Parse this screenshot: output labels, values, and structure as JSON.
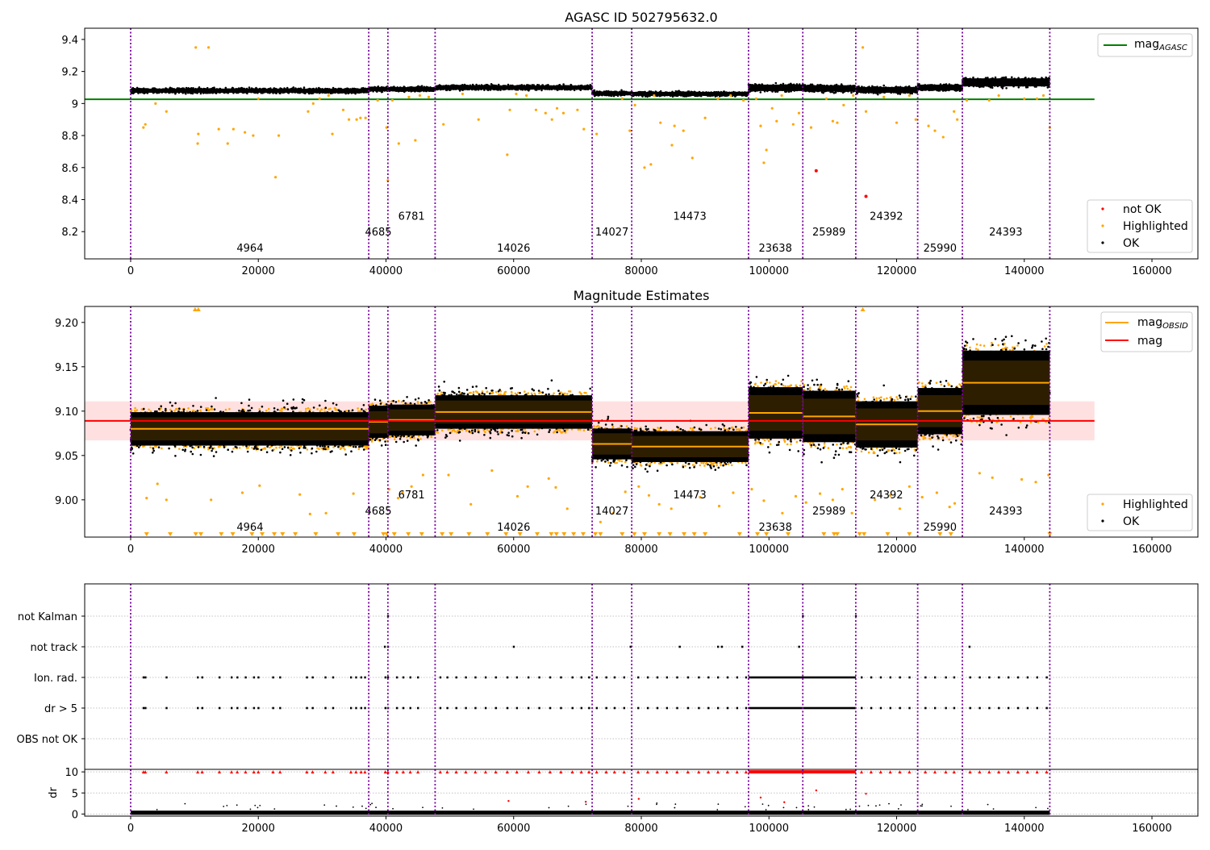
{
  "chart_data": [
    {
      "type": "scatter",
      "title": "AGASC ID 502795632.0",
      "xlim": [
        -7200,
        167200
      ],
      "ylim": [
        8.03,
        9.47
      ],
      "x_ticks": [
        0,
        20000,
        40000,
        60000,
        80000,
        100000,
        120000,
        140000,
        160000
      ],
      "y_ticks": [
        8.2,
        8.4,
        8.6,
        8.8,
        9.0,
        9.2,
        9.4
      ],
      "obs_boundaries": [
        0,
        37300,
        40300,
        47700,
        72300,
        78500,
        96800,
        105300,
        113600,
        123300,
        130300,
        144000
      ],
      "obs_labels": [
        {
          "text": "4964",
          "x": 18700,
          "y": 8.1
        },
        {
          "text": "4685",
          "x": 38800,
          "y": 8.2
        },
        {
          "text": "6781",
          "x": 44000,
          "y": 8.3
        },
        {
          "text": "14026",
          "x": 60000,
          "y": 8.1
        },
        {
          "text": "14027",
          "x": 75400,
          "y": 8.2
        },
        {
          "text": "14473",
          "x": 87600,
          "y": 8.3
        },
        {
          "text": "23638",
          "x": 101000,
          "y": 8.1
        },
        {
          "text": "25989",
          "x": 109400,
          "y": 8.2
        },
        {
          "text": "24392",
          "x": 118400,
          "y": 8.3
        },
        {
          "text": "25990",
          "x": 126800,
          "y": 8.1
        },
        {
          "text": "24393",
          "x": 137100,
          "y": 8.2
        }
      ],
      "reference_line": {
        "name": "mag_AGASC",
        "value": 9.026,
        "x_range": [
          -7200,
          151000
        ],
        "color": "#008000"
      },
      "ok_bands": [
        {
          "x0": 0,
          "x1": 37300,
          "center": 9.08,
          "half_width": 0.013
        },
        {
          "x0": 37300,
          "x1": 40300,
          "center": 9.09,
          "half_width": 0.013
        },
        {
          "x0": 40300,
          "x1": 47700,
          "center": 9.09,
          "half_width": 0.012
        },
        {
          "x0": 47700,
          "x1": 72300,
          "center": 9.1,
          "half_width": 0.013
        },
        {
          "x0": 72300,
          "x1": 78500,
          "center": 9.063,
          "half_width": 0.012
        },
        {
          "x0": 78500,
          "x1": 96800,
          "center": 9.06,
          "half_width": 0.012
        },
        {
          "x0": 96800,
          "x1": 105300,
          "center": 9.098,
          "half_width": 0.02
        },
        {
          "x0": 105300,
          "x1": 113600,
          "center": 9.094,
          "half_width": 0.02
        },
        {
          "x0": 113600,
          "x1": 123300,
          "center": 9.085,
          "half_width": 0.018
        },
        {
          "x0": 123300,
          "x1": 130300,
          "center": 9.1,
          "half_width": 0.018
        },
        {
          "x0": 130300,
          "x1": 144000,
          "center": 9.132,
          "half_width": 0.025
        }
      ],
      "highlighted_points": {
        "x": [
          2000,
          2300,
          3900,
          5600,
          10200,
          10600,
          10500,
          12200,
          13800,
          15200,
          16100,
          17900,
          19200,
          20000,
          22700,
          23200,
          27800,
          28600,
          29600,
          31000,
          31600,
          33300,
          34200,
          35400,
          36000,
          36800,
          38700,
          40100,
          40300,
          41000,
          42000,
          43600,
          44600,
          45300,
          46700,
          49000,
          52000,
          54500,
          59000,
          59400,
          60400,
          62000,
          63500,
          65000,
          66000,
          66800,
          67800,
          70000,
          71000,
          73000,
          77000,
          78200,
          79000,
          80500,
          81500,
          82000,
          83000,
          84800,
          85200,
          86600,
          88000,
          90000,
          92000,
          94000,
          96000,
          98000,
          98700,
          99200,
          99600,
          100500,
          101200,
          102000,
          103800,
          104700,
          106600,
          109000,
          110000,
          110700,
          111700,
          113200,
          114700,
          115200,
          118000,
          120000,
          122000,
          123000,
          125000,
          126000,
          127300,
          129000,
          129500,
          131000,
          134500,
          136000,
          140000,
          142000,
          143000,
          144000
        ],
        "y": [
          8.85,
          8.87,
          9.0,
          8.95,
          9.35,
          8.81,
          8.75,
          9.35,
          8.84,
          8.75,
          8.84,
          8.82,
          8.8,
          9.03,
          8.54,
          8.8,
          8.95,
          9.0,
          9.03,
          9.05,
          8.81,
          8.96,
          8.9,
          8.9,
          8.91,
          8.91,
          9.02,
          8.85,
          8.52,
          9.02,
          8.75,
          9.04,
          8.77,
          9.05,
          9.04,
          8.87,
          9.06,
          8.9,
          8.68,
          8.96,
          9.06,
          9.05,
          8.96,
          8.94,
          8.9,
          8.97,
          8.94,
          8.96,
          8.84,
          8.81,
          9.03,
          8.83,
          8.99,
          8.6,
          8.62,
          9.05,
          8.88,
          8.74,
          8.86,
          8.83,
          8.66,
          8.91,
          9.03,
          9.05,
          9.02,
          9.03,
          8.86,
          8.63,
          8.71,
          8.97,
          8.89,
          9.05,
          8.87,
          8.94,
          8.85,
          9.03,
          8.89,
          8.88,
          8.99,
          9.05,
          9.35,
          8.95,
          9.04,
          8.88,
          9.05,
          8.9,
          8.86,
          8.83,
          8.79,
          8.95,
          8.9,
          9.02,
          9.02,
          9.05,
          9.03,
          9.03,
          9.05,
          8.85
        ],
        "color": "#ffa500"
      },
      "not_ok_points": {
        "x": [
          107400,
          115200
        ],
        "y": [
          8.58,
          8.42
        ],
        "color": "#ff0000"
      },
      "legend_reference": [
        "mag_AGASC"
      ],
      "legend_reference_position": "top-right",
      "legend_points": [
        "not OK",
        "Highlighted",
        "OK"
      ],
      "legend_points_position": "lower-right",
      "grid": false
    },
    {
      "type": "scatter",
      "title": "Magnitude Estimates",
      "xlim": [
        -7200,
        167200
      ],
      "ylim": [
        8.958,
        9.218
      ],
      "x_ticks": [
        0,
        20000,
        40000,
        60000,
        80000,
        100000,
        120000,
        140000,
        160000
      ],
      "y_ticks": [
        9.0,
        9.05,
        9.1,
        9.15,
        9.2
      ],
      "y_tick_labels": [
        "9.00",
        "9.05",
        "9.10",
        "9.15",
        "9.20"
      ],
      "obs_labels": [
        {
          "text": "4964",
          "x": 18700,
          "y": 8.97
        },
        {
          "text": "4685",
          "x": 38800,
          "y": 8.988
        },
        {
          "text": "6781",
          "x": 44000,
          "y": 9.006
        },
        {
          "text": "14026",
          "x": 60000,
          "y": 8.97
        },
        {
          "text": "14027",
          "x": 75400,
          "y": 8.988
        },
        {
          "text": "14473",
          "x": 87600,
          "y": 9.006
        },
        {
          "text": "23638",
          "x": 101000,
          "y": 8.97
        },
        {
          "text": "25989",
          "x": 109400,
          "y": 8.988
        },
        {
          "text": "24392",
          "x": 118400,
          "y": 9.006
        },
        {
          "text": "25990",
          "x": 126800,
          "y": 8.97
        },
        {
          "text": "24393",
          "x": 137100,
          "y": 8.988
        }
      ],
      "mag_line": {
        "name": "mag",
        "value": 9.089,
        "band": [
          9.067,
          9.111
        ],
        "x_range": [
          -7200,
          151000
        ],
        "color": "#ff0000"
      },
      "mag_obsid": {
        "name": "mag_OBSID",
        "color": "#ffa500",
        "segments": [
          {
            "x0": 0,
            "x1": 37300,
            "value": 9.08,
            "band": [
              9.067,
              9.093
            ]
          },
          {
            "x0": 37300,
            "x1": 40300,
            "value": 9.088,
            "band": [
              9.075,
              9.1
            ]
          },
          {
            "x0": 40300,
            "x1": 47700,
            "value": 9.09,
            "band": [
              9.078,
              9.102
            ]
          },
          {
            "x0": 47700,
            "x1": 72300,
            "value": 9.099,
            "band": [
              9.086,
              9.112
            ]
          },
          {
            "x0": 72300,
            "x1": 78500,
            "value": 9.063,
            "band": [
              9.051,
              9.075
            ]
          },
          {
            "x0": 78500,
            "x1": 96800,
            "value": 9.06,
            "band": [
              9.048,
              9.072
            ]
          },
          {
            "x0": 96800,
            "x1": 105300,
            "value": 9.098,
            "band": [
              9.078,
              9.118
            ]
          },
          {
            "x0": 105300,
            "x1": 113600,
            "value": 9.094,
            "band": [
              9.074,
              9.114
            ]
          },
          {
            "x0": 113600,
            "x1": 123300,
            "value": 9.085,
            "band": [
              9.067,
              9.103
            ]
          },
          {
            "x0": 123300,
            "x1": 130300,
            "value": 9.1,
            "band": [
              9.082,
              9.118
            ]
          },
          {
            "x0": 130300,
            "x1": 144000,
            "value": 9.132,
            "band": [
              9.107,
              9.157
            ]
          }
        ]
      },
      "highlighted_points": {
        "x": [
          2500,
          4200,
          5600,
          10100,
          10600,
          12600,
          17500,
          20200,
          26500,
          28100,
          30600,
          34900,
          40500,
          41900,
          42600,
          44000,
          45800,
          49800,
          53300,
          56600,
          60600,
          62200,
          65500,
          66600,
          68400,
          73600,
          75600,
          77500,
          79600,
          81200,
          82800,
          84700,
          89200,
          92200,
          94400,
          97300,
          99200,
          102100,
          104200,
          105800,
          108000,
          110000,
          111500,
          113000,
          114700,
          116600,
          119000,
          120500,
          122000,
          124000,
          126300,
          128300,
          129100,
          133000,
          135000,
          139600,
          141800,
          143800
        ],
        "y": [
          9.002,
          9.018,
          9.0,
          9.217,
          9.216,
          9.0,
          9.008,
          9.016,
          9.006,
          8.984,
          8.985,
          9.007,
          9.012,
          9.002,
          9.008,
          9.015,
          9.028,
          9.028,
          8.995,
          9.033,
          9.004,
          9.015,
          9.024,
          9.014,
          8.99,
          8.975,
          8.985,
          9.009,
          9.015,
          9.005,
          8.995,
          8.99,
          9.003,
          8.993,
          9.008,
          9.012,
          8.999,
          8.985,
          9.004,
          8.997,
          9.007,
          9.0,
          9.012,
          8.985,
          9.217,
          9.0,
          9.005,
          8.99,
          9.015,
          9.003,
          9.008,
          8.992,
          8.996,
          9.03,
          9.025,
          9.023,
          9.02,
          9.028
        ],
        "color": "#ffa500"
      },
      "legend_lines": [
        "mag_OBSID",
        "mag"
      ],
      "legend_lines_position": "top-right",
      "legend_points": [
        "Highlighted",
        "OK"
      ],
      "legend_points_position": "lower-right",
      "grid": false
    },
    {
      "type": "scatter",
      "title": "",
      "xlim": [
        -7200,
        167200
      ],
      "x_ticks": [
        0,
        20000,
        40000,
        60000,
        80000,
        100000,
        120000,
        140000,
        160000
      ],
      "flag_rows": [
        "not Kalman",
        "not track",
        "Ion. rad.",
        "dr > 5",
        "OBS not OK"
      ],
      "flags": {
        "not Kalman": [
          40300,
          105300,
          113600
        ],
        "not track": [
          39800,
          40300,
          60000,
          78300,
          86000,
          92000,
          92600,
          95800,
          104700,
          131400
        ],
        "Ion. rad.": [
          2000,
          2300,
          5600,
          10500,
          11200,
          13900,
          15800,
          16700,
          18000,
          19300,
          20000,
          22300,
          23400,
          27600,
          28500,
          30500,
          31700,
          34500,
          35300,
          36100,
          36700,
          39900,
          40300,
          41700,
          42700,
          43800,
          45000,
          48500,
          49600,
          51000,
          52500,
          54000,
          55600,
          57200,
          59000,
          60500,
          62300,
          64000,
          65700,
          67400,
          69200,
          70600,
          71800,
          73000,
          74500,
          75800,
          77300,
          79500,
          81000,
          82500,
          84000,
          85600,
          87300,
          89000,
          90500,
          92000,
          93500,
          95000,
          96400,
          114500,
          116000,
          117500,
          119000,
          120500,
          122000,
          124500,
          126000,
          127700,
          129000,
          131500,
          133000,
          134500,
          136000,
          137500,
          139000,
          140500,
          142000,
          143500
        ],
        "dr > 5": [
          2000,
          2300,
          5600,
          10500,
          11200,
          13900,
          15800,
          16700,
          18000,
          19300,
          20000,
          22300,
          23400,
          27600,
          28500,
          30500,
          31700,
          34500,
          35300,
          36100,
          36700,
          39900,
          40300,
          41700,
          42700,
          43800,
          45000,
          48500,
          49600,
          51000,
          52500,
          54000,
          55600,
          57200,
          59000,
          60500,
          62300,
          64000,
          65700,
          67400,
          69200,
          70600,
          71800,
          73000,
          74500,
          75800,
          77300,
          79500,
          81000,
          82500,
          84000,
          85600,
          87300,
          89000,
          90500,
          92000,
          93500,
          95000,
          96400,
          114500,
          116000,
          117500,
          119000,
          120500,
          122000,
          124500,
          126000,
          127700,
          129000,
          131500,
          133000,
          134500,
          136000,
          137500,
          139000,
          140500,
          142000,
          143500
        ],
        "OBS not OK": []
      },
      "dense_flag_range": {
        "rows": [
          "Ion. rad.",
          "dr > 5"
        ],
        "x0": 96800,
        "x1": 113600
      },
      "dr": {
        "ylabel": "dr",
        "ylim": [
          -0.5,
          10.6
        ],
        "y_ticks": [
          0,
          5,
          10
        ],
        "clip_value": 10,
        "clipped_x": [
          2000,
          2300,
          5600,
          10500,
          11200,
          13900,
          15800,
          16700,
          18000,
          19300,
          20000,
          22300,
          23400,
          27600,
          28500,
          30500,
          31700,
          34500,
          35300,
          36100,
          36700,
          39900,
          40300,
          41700,
          42700,
          43800,
          45000,
          48500,
          49600,
          51000,
          52500,
          54000,
          55600,
          57200,
          59000,
          60500,
          62300,
          64000,
          65700,
          67400,
          69200,
          70600,
          71800,
          73000,
          74500,
          75800,
          77300,
          79500,
          81000,
          82500,
          84000,
          85600,
          87300,
          89000,
          90500,
          92000,
          93500,
          95000,
          96400,
          114500,
          116000,
          117500,
          119000,
          120500,
          122000,
          124500,
          126000,
          127700,
          129000,
          131500,
          133000,
          134500,
          136000,
          137500,
          139000,
          140500,
          142000,
          143500
        ],
        "red_points": {
          "x": [
            59200,
            71300,
            79600,
            98700,
            102400,
            107400,
            115200
          ],
          "y": [
            3.1,
            2.9,
            3.6,
            3.9,
            2.8,
            5.6,
            4.8
          ]
        },
        "baseline_x_range": [
          0,
          144000
        ],
        "baseline_values": [
          0.3,
          0.8
        ]
      },
      "grid": true
    }
  ]
}
